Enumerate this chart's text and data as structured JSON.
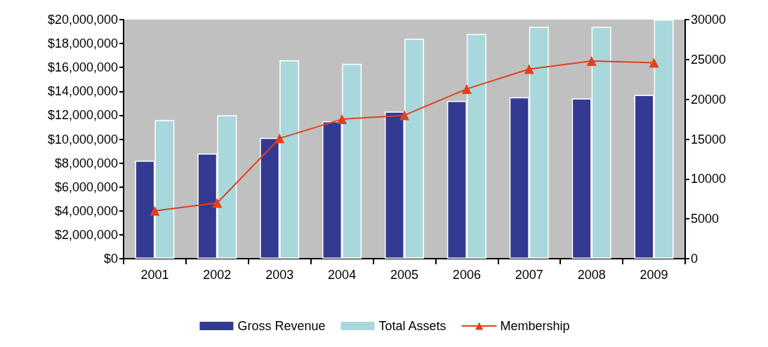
{
  "chart_data": {
    "type": "bar",
    "categories": [
      "2001",
      "2002",
      "2003",
      "2004",
      "2005",
      "2006",
      "2007",
      "2008",
      "2009"
    ],
    "series": [
      {
        "name": "Gross Revenue",
        "color": "#343a92",
        "values": [
          8200000,
          8800000,
          10100000,
          11500000,
          12300000,
          13200000,
          13500000,
          13400000,
          13700000
        ]
      },
      {
        "name": "Total Assets",
        "color": "#a8d8dc",
        "values": [
          11600000,
          12000000,
          16600000,
          16300000,
          18400000,
          18800000,
          19400000,
          19400000,
          20000000
        ]
      },
      {
        "name": "Membership",
        "type": "line",
        "axis": "y2",
        "color": "#e2401c",
        "marker": "triangle",
        "values": [
          6000,
          7000,
          15100,
          17500,
          18000,
          21300,
          23800,
          24800,
          24600
        ]
      }
    ],
    "ylim": [
      0,
      20000000
    ],
    "yticks": [
      {
        "value": 0,
        "label": "$0"
      },
      {
        "value": 2000000,
        "label": "$2,000,000"
      },
      {
        "value": 4000000,
        "label": "$4,000,000"
      },
      {
        "value": 6000000,
        "label": "$6,000,000"
      },
      {
        "value": 8000000,
        "label": "$8,000,000"
      },
      {
        "value": 10000000,
        "label": "$10,000,000"
      },
      {
        "value": 12000000,
        "label": "$12,000,000"
      },
      {
        "value": 14000000,
        "label": "$14,000,000"
      },
      {
        "value": 16000000,
        "label": "$16,000,000"
      },
      {
        "value": 18000000,
        "label": "$18,000,000"
      },
      {
        "value": 20000000,
        "label": "$20,000,000"
      }
    ],
    "y2lim": [
      0,
      30000
    ],
    "y2ticks": [
      0,
      5000,
      10000,
      15000,
      20000,
      25000,
      30000
    ],
    "grid": false,
    "legend": "bottom"
  }
}
